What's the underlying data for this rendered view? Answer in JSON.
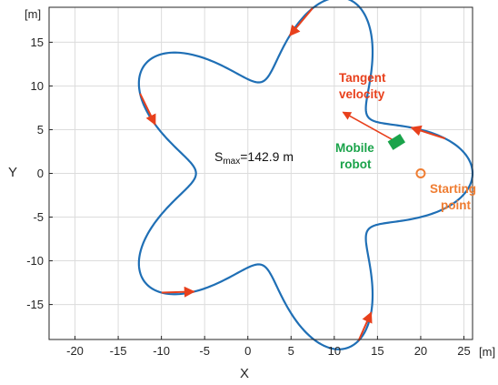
{
  "chart_data": {
    "type": "line",
    "title": "",
    "xlabel": "X",
    "ylabel": "Y",
    "x_unit": "[m]",
    "y_unit": "[m]",
    "xlim": [
      -23,
      26
    ],
    "ylim": [
      -19,
      19
    ],
    "xticks": [
      -20,
      -15,
      -10,
      -5,
      0,
      5,
      10,
      15,
      20,
      25
    ],
    "yticks": [
      -15,
      -10,
      -5,
      0,
      5,
      10,
      15
    ],
    "grid": true,
    "path": {
      "shape": "five-lobed star",
      "center": [
        5,
        0
      ],
      "base_radius": 16,
      "lobe_amplitude": 5,
      "lobes": 5
    },
    "arrow_t": [
      0.22,
      1.44,
      2.66,
      3.88,
      5.1
    ],
    "starting_point": [
      20,
      0
    ],
    "mobile_robot": [
      17.2,
      3.6
    ],
    "tangent_velocity_end": [
      11,
      7
    ],
    "smax_label": "S",
    "smax_sub": "max",
    "smax_value": "=142.9 m",
    "annotations": {
      "tangent_line1": "Tangent",
      "tangent_line2": "velocity",
      "robot_line1": "Mobile",
      "robot_line2": "robot",
      "start_line1": "Starting",
      "start_line2": "point"
    },
    "colors": {
      "path": "#1f6fb5",
      "arrow": "#e8401c",
      "robot": "#1aa34a",
      "start": "#ef7d32",
      "grid": "#dcdcdc"
    }
  }
}
